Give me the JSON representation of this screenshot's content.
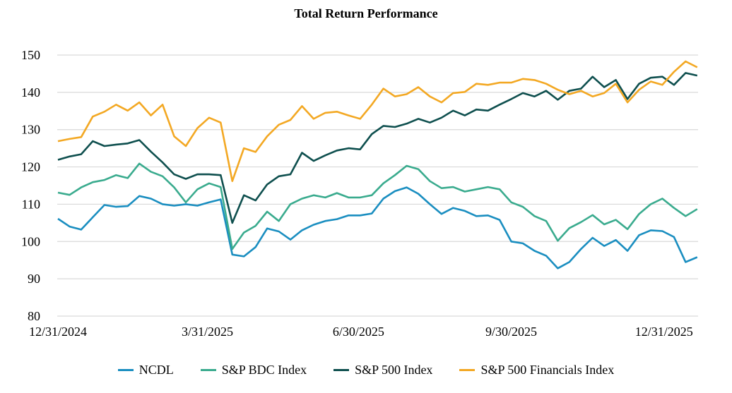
{
  "chart_data": {
    "type": "line",
    "title": "Total Return Performance",
    "xlabel": "",
    "ylabel": "",
    "ylim": [
      80,
      150
    ],
    "yticks": [
      80,
      90,
      100,
      110,
      120,
      130,
      140,
      150
    ],
    "xticks": [
      "12/31/2024",
      "3/31/2025",
      "6/30/2025",
      "9/30/2025",
      "12/31/2025"
    ],
    "xtick_dates": [
      "2024-12-31",
      "2025-03-31",
      "2025-06-30",
      "2025-09-30",
      "2025-12-31"
    ],
    "grid": "horizontal",
    "legend": "bottom",
    "x_start": "2024-12-31",
    "x_step_days": 7,
    "series": [
      {
        "name": "NCDL",
        "color": "#1a8ec0",
        "values": [
          106.1,
          104,
          103.2,
          106.5,
          109.8,
          109.3,
          109.5,
          112.2,
          111.5,
          110,
          109.6,
          110,
          109.6,
          110.5,
          111.3,
          96.5,
          96,
          98.5,
          103.5,
          102.7,
          100.5,
          103,
          104.5,
          105.5,
          106,
          107,
          107,
          107.5,
          111.5,
          113.5,
          114.5,
          112.8,
          110,
          107.4,
          109,
          108.2,
          106.8,
          107,
          105.8,
          100,
          99.5,
          97.5,
          96.2,
          92.8,
          94.5,
          98,
          101,
          98.8,
          100.4,
          97.5,
          101.7,
          103,
          102.8,
          101.2,
          94.5,
          95.8
        ]
      },
      {
        "name": "S&P BDC Index",
        "color": "#3aab8e",
        "values": [
          113.1,
          112.5,
          114.5,
          115.9,
          116.5,
          117.8,
          117,
          120.9,
          118.7,
          117.5,
          114.5,
          110.5,
          114,
          115.6,
          114.6,
          98,
          102.4,
          104.2,
          108,
          105.5,
          110,
          111.5,
          112.4,
          111.8,
          113,
          111.8,
          111.8,
          112.4,
          115.6,
          117.8,
          120.3,
          119.4,
          116.2,
          114.3,
          114.6,
          113.4,
          114,
          114.6,
          114,
          110.5,
          109.3,
          106.8,
          105.5,
          100.2,
          103.6,
          105.2,
          107.1,
          104.6,
          105.8,
          103.3,
          107.4,
          110,
          111.5,
          109,
          106.8,
          108.7
        ]
      },
      {
        "name": "S&P 500 Index",
        "color": "#0e4f4e",
        "values": [
          121.9,
          122.8,
          123.4,
          126.9,
          125.6,
          126,
          126.3,
          127.2,
          124.1,
          121.2,
          118,
          116.8,
          118,
          118,
          117.8,
          105,
          112.4,
          111,
          115.3,
          117.5,
          118,
          123.8,
          121.6,
          123.1,
          124.4,
          125,
          124.7,
          128.8,
          131,
          130.7,
          131.6,
          132.9,
          131.9,
          133.2,
          135.1,
          133.8,
          135.4,
          135.1,
          136.7,
          138.2,
          139.8,
          138.9,
          140.4,
          138,
          140.4,
          141,
          144.2,
          141.4,
          143.3,
          138.2,
          142.3,
          143.9,
          144.2,
          142,
          145.2,
          144.5
        ]
      },
      {
        "name": "S&P 500 Financials Index",
        "color": "#f3a823",
        "values": [
          126.9,
          127.5,
          128,
          133.5,
          134.8,
          136.7,
          135.1,
          137.3,
          133.8,
          136.7,
          128.2,
          125.6,
          130.4,
          133.2,
          131.9,
          116.2,
          125,
          124,
          128.2,
          131.3,
          132.6,
          136.3,
          132.9,
          134.5,
          134.8,
          133.8,
          132.9,
          136.7,
          141,
          138.9,
          139.5,
          141.4,
          138.9,
          137.3,
          139.8,
          140.1,
          142.3,
          142,
          142.6,
          142.6,
          143.6,
          143.3,
          142.3,
          140.7,
          139.5,
          140.4,
          138.9,
          139.8,
          142.3,
          137.3,
          140.7,
          142.9,
          142,
          145.5,
          148.3,
          146.7
        ]
      }
    ]
  }
}
